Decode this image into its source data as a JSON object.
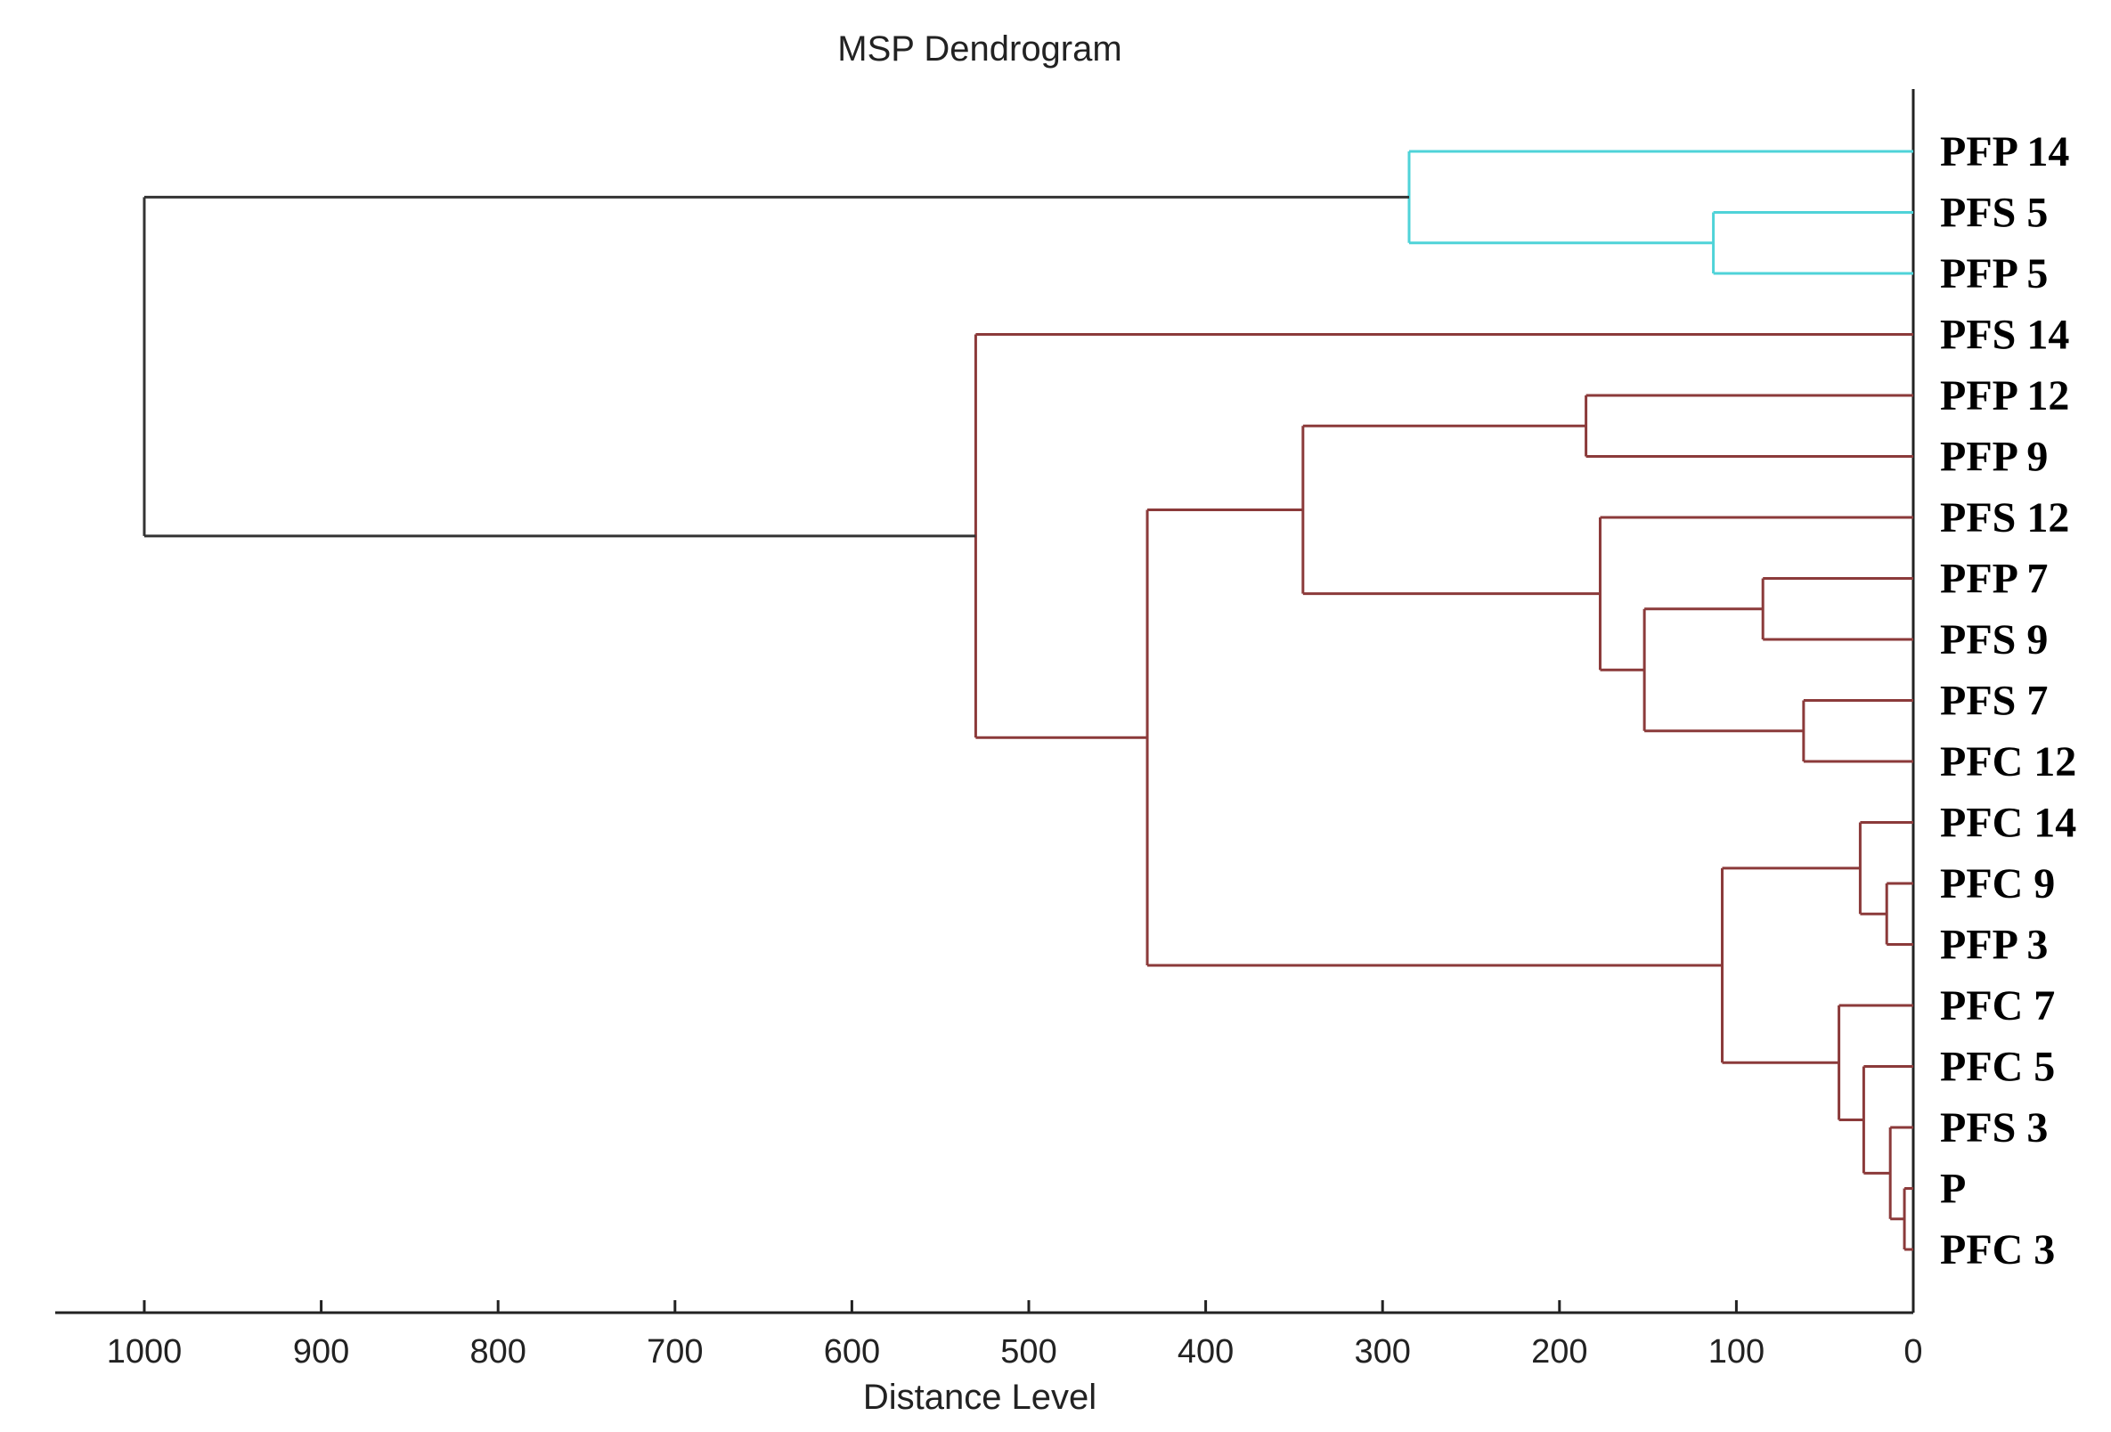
{
  "chart_data": {
    "type": "dendrogram",
    "title": "MSP Dendrogram",
    "xlabel": "Distance Level",
    "ylabel": "",
    "xlim": [
      1050,
      0
    ],
    "x_ticks": [
      1000,
      900,
      800,
      700,
      600,
      500,
      400,
      300,
      200,
      100,
      0
    ],
    "x_tick_labels": [
      "1000",
      "900",
      "800",
      "700",
      "600",
      "500",
      "400",
      "300",
      "200",
      "100",
      "0"
    ],
    "leaves": [
      "PFP 14",
      "PFS 5",
      "PFP 5",
      "PFS 14",
      "PFP 12",
      "PFP 9",
      "PFS 12",
      "PFP 7",
      "PFS 9",
      "PFS 7",
      "PFC 12",
      "PFC 14",
      "PFC 9",
      "PFP 3",
      "PFC 7",
      "PFC 5",
      "PFS 3",
      "P",
      "PFC 3"
    ],
    "colors": {
      "cluster_a": "#4fd3d8",
      "cluster_b": "#8b3a3a",
      "root": "#333333",
      "axis": "#222222"
    },
    "merges": [
      {
        "id": "n1",
        "children": [
          "PFS 5",
          "PFP 5"
        ],
        "distance": 113,
        "color": "cluster_a"
      },
      {
        "id": "n2",
        "children": [
          "PFP 14",
          "n1"
        ],
        "distance": 285,
        "color": "cluster_a"
      },
      {
        "id": "n3",
        "children": [
          "PFP 12",
          "PFP 9"
        ],
        "distance": 185,
        "color": "cluster_b"
      },
      {
        "id": "n4",
        "children": [
          "PFP 7",
          "PFS 9"
        ],
        "distance": 85,
        "color": "cluster_b"
      },
      {
        "id": "n5",
        "children": [
          "PFS 7",
          "PFC 12"
        ],
        "distance": 62,
        "color": "cluster_b"
      },
      {
        "id": "n6",
        "children": [
          "n4",
          "n5"
        ],
        "distance": 152,
        "color": "cluster_b"
      },
      {
        "id": "n7",
        "children": [
          "PFS 12",
          "n6"
        ],
        "distance": 177,
        "color": "cluster_b"
      },
      {
        "id": "n8",
        "children": [
          "n3",
          "n7"
        ],
        "distance": 345,
        "color": "cluster_b"
      },
      {
        "id": "n9",
        "children": [
          "PFC 9",
          "PFP 3"
        ],
        "distance": 15,
        "color": "cluster_b"
      },
      {
        "id": "n10",
        "children": [
          "PFC 14",
          "n9"
        ],
        "distance": 30,
        "color": "cluster_b"
      },
      {
        "id": "n11",
        "children": [
          "P",
          "PFC 3"
        ],
        "distance": 5,
        "color": "cluster_b"
      },
      {
        "id": "n12",
        "children": [
          "PFS 3",
          "n11"
        ],
        "distance": 13,
        "color": "cluster_b"
      },
      {
        "id": "n13",
        "children": [
          "PFC 5",
          "n12"
        ],
        "distance": 28,
        "color": "cluster_b"
      },
      {
        "id": "n14",
        "children": [
          "PFC 7",
          "n13"
        ],
        "distance": 42,
        "color": "cluster_b"
      },
      {
        "id": "n15",
        "children": [
          "n10",
          "n14"
        ],
        "distance": 108,
        "color": "cluster_b"
      },
      {
        "id": "n16",
        "children": [
          "n8",
          "n15"
        ],
        "distance": 433,
        "color": "cluster_b"
      },
      {
        "id": "n17",
        "children": [
          "PFS 14",
          "n16"
        ],
        "distance": 530,
        "color": "cluster_b"
      },
      {
        "id": "n18",
        "children": [
          "n2",
          "n17"
        ],
        "distance": 1000,
        "color": "root"
      }
    ]
  }
}
